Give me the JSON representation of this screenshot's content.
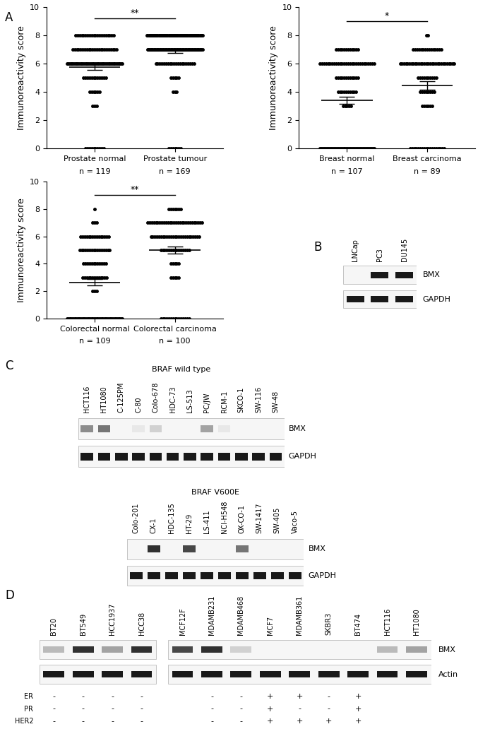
{
  "chart_data": [
    {
      "type": "scatter",
      "ylabel": "Immunoreactivity score",
      "ylim": [
        0,
        10
      ],
      "yticks": [
        0,
        2,
        4,
        6,
        8,
        10
      ],
      "categories": [
        "Prostate normal",
        "Prostate tumour"
      ],
      "n_labels": [
        "n = 119",
        "n = 169"
      ],
      "scores": [
        0,
        1,
        2,
        3,
        4,
        5,
        6,
        7,
        8
      ],
      "series": [
        {
          "color": "#000000",
          "counts": [
            10,
            0,
            0,
            3,
            6,
            12,
            45,
            23,
            20
          ],
          "mean": 5.75,
          "sem": 0.2
        },
        {
          "color": "#000000",
          "counts": [
            7,
            0,
            0,
            0,
            3,
            5,
            20,
            60,
            74
          ],
          "mean": 6.9,
          "sem": 0.12
        }
      ],
      "significance": {
        "label": "**",
        "y": 9.2
      }
    },
    {
      "type": "scatter",
      "ylabel": "Immunoreactivity score",
      "ylim": [
        0,
        10
      ],
      "yticks": [
        0,
        2,
        4,
        6,
        8,
        10
      ],
      "categories": [
        "Breast normal",
        "Breast carcinoma"
      ],
      "n_labels": [
        "n = 107",
        "n = 89"
      ],
      "scores": [
        0,
        1,
        2,
        3,
        4,
        5,
        6,
        7,
        8
      ],
      "series": [
        {
          "color": "#000000",
          "counts": [
            40,
            0,
            0,
            5,
            10,
            12,
            28,
            12,
            0
          ],
          "mean": 3.4,
          "sem": 0.25
        },
        {
          "color": "#000000",
          "counts": [
            18,
            0,
            0,
            6,
            8,
            10,
            30,
            15,
            2
          ],
          "mean": 4.45,
          "sem": 0.3
        }
      ],
      "significance": {
        "label": "*",
        "y": 9.0
      }
    },
    {
      "type": "scatter",
      "ylabel": "Immunoreactivity score",
      "ylim": [
        0,
        10
      ],
      "yticks": [
        0,
        2,
        4,
        6,
        8,
        10
      ],
      "categories": [
        "Colorectal normal",
        "Colorectal carcinoma"
      ],
      "n_labels": [
        "n = 109",
        "n = 100"
      ],
      "scores": [
        0,
        1,
        2,
        3,
        4,
        5,
        6,
        7,
        8
      ],
      "series": [
        {
          "color": "#000000",
          "counts": [
            46,
            0,
            3,
            13,
            12,
            16,
            15,
            3,
            1
          ],
          "mean": 2.65,
          "sem": 0.25
        },
        {
          "color": "#000000",
          "counts": [
            15,
            0,
            0,
            5,
            5,
            15,
            25,
            28,
            7
          ],
          "mean": 5.0,
          "sem": 0.28
        }
      ],
      "significance": {
        "label": "**",
        "y": 9.0
      }
    }
  ],
  "panel_labels": [
    "A",
    "B",
    "C",
    "D"
  ],
  "blots": [
    {
      "lane_groups": [
        [
          "LNCap",
          "PC3",
          "DU145"
        ]
      ],
      "bands": [
        {
          "name": "BMX",
          "intensity": [
            0,
            1,
            1
          ]
        },
        {
          "name": "GAPDH",
          "intensity": [
            1,
            1,
            1
          ]
        }
      ]
    },
    {
      "title": "BRAF wild type",
      "lane_groups": [
        [
          "HCT116",
          "HT1080",
          "C-125PM",
          "C-80",
          "Colo-678",
          "HDC-73",
          "LS-513",
          "PC/JW",
          "RCM-1",
          "SKCO-1",
          "SW-116",
          "SW-48"
        ]
      ],
      "bands": [
        {
          "name": "BMX",
          "intensity": [
            0.5,
            0.6,
            0,
            0.1,
            0.2,
            0,
            0,
            0.4,
            0.1,
            0,
            0,
            0
          ]
        },
        {
          "name": "GAPDH",
          "intensity": [
            1,
            1,
            1,
            1,
            1,
            1,
            1,
            1,
            1,
            1,
            1,
            1
          ]
        }
      ]
    },
    {
      "title": "BRAF V600E",
      "lane_groups": [
        [
          "Colo-201",
          "CX-1",
          "HDC-135",
          "HT-29",
          "LS-411",
          "NCI-H548",
          "OX-CO-1",
          "SW-1417",
          "SW-405",
          "Vaco-5"
        ]
      ],
      "bands": [
        {
          "name": "BMX",
          "intensity": [
            0,
            0.9,
            0,
            0.8,
            0,
            0,
            0.6,
            0,
            0,
            0
          ]
        },
        {
          "name": "GAPDH",
          "intensity": [
            1,
            1,
            1,
            1,
            1,
            1,
            1,
            1,
            1,
            1
          ]
        }
      ]
    },
    {
      "lane_groups": [
        [
          "BT20",
          "BT549",
          "HCC1937",
          "HCC38"
        ],
        [
          "MCF12F",
          "MDAMB231",
          "MDAMB468",
          "MCF7",
          "MDAMB361",
          "SKBR3",
          "BT474",
          "HCT116",
          "HT1080"
        ]
      ],
      "bands": [
        {
          "name": "BMX",
          "intensity": [
            0.3,
            0.9,
            0.4,
            0.9,
            0.8,
            0.9,
            0.2,
            0,
            0,
            0,
            0,
            0.3,
            0.4
          ]
        },
        {
          "name": "Actin",
          "intensity": [
            1,
            1,
            1,
            1,
            1,
            1,
            1,
            1,
            1,
            1,
            1,
            1,
            1
          ]
        }
      ],
      "status": [
        {
          "name": "ER",
          "values": [
            "-",
            "-",
            "-",
            "-",
            null,
            "-",
            "-",
            "+",
            "+",
            "-",
            "+",
            null,
            null
          ]
        },
        {
          "name": "PR",
          "values": [
            "-",
            "-",
            "-",
            "-",
            null,
            "-",
            "-",
            "+",
            "-",
            "-",
            "+",
            null,
            null
          ]
        },
        {
          "name": "HER2",
          "values": [
            "-",
            "-",
            "-",
            "-",
            null,
            "-",
            "-",
            "+",
            "+",
            "+",
            "+",
            null,
            null
          ]
        }
      ]
    }
  ]
}
